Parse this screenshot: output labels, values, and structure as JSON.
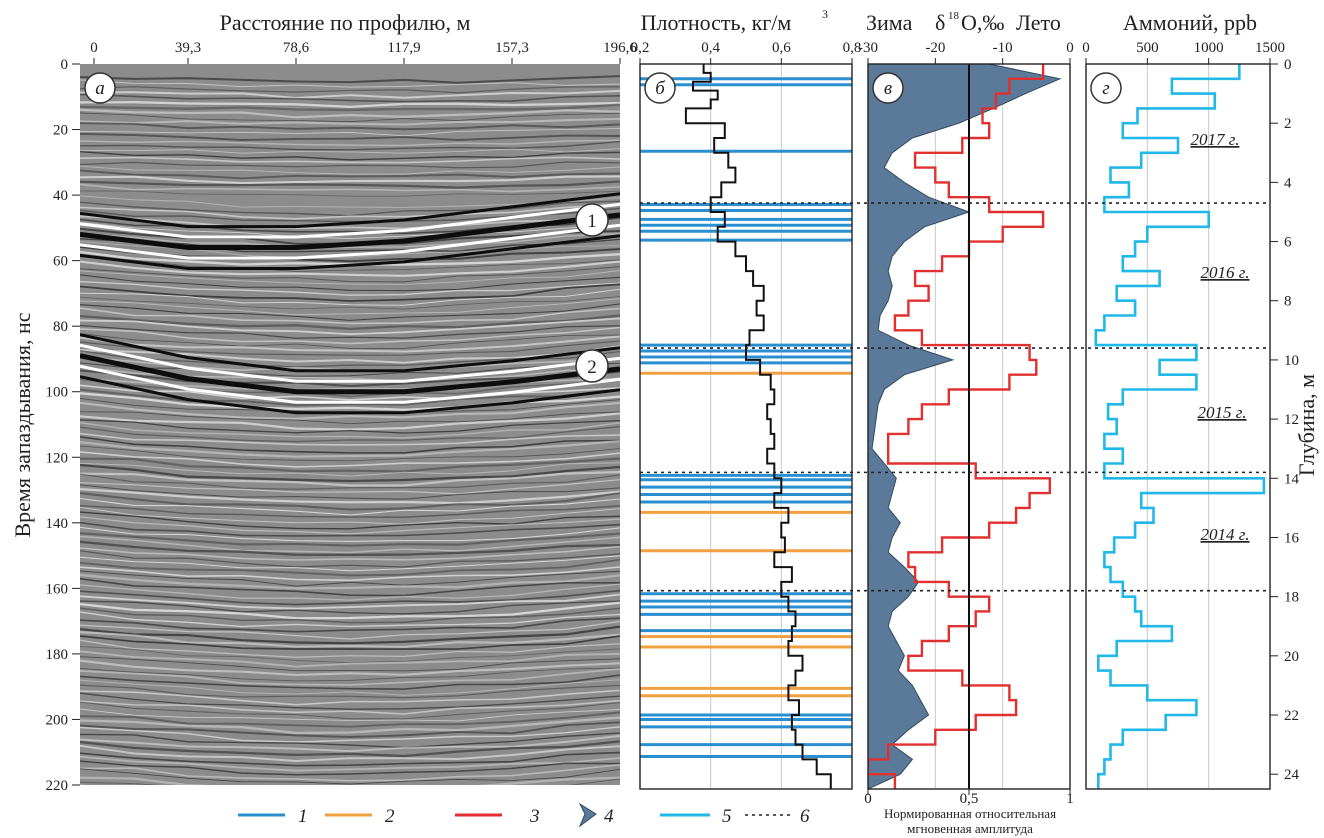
{
  "radargram": {
    "title": "Расстояние по профилю, м",
    "x_ticks": [
      "0",
      "39,3",
      "78,6",
      "117,9",
      "157,3",
      "196,6"
    ],
    "y_label": "Время запаздывания, нс",
    "y_ticks": [
      "0",
      "20",
      "40",
      "60",
      "80",
      "100",
      "120",
      "140",
      "160",
      "180",
      "200",
      "220"
    ],
    "panel_letter": "а",
    "horizon_labels": [
      "1",
      "2"
    ]
  },
  "density": {
    "title": "Плотность, кг/м",
    "title_sup": "3",
    "x_ticks": [
      "0,2",
      "0,4",
      "0,6",
      "0,8"
    ],
    "panel_letter": "б"
  },
  "isotope": {
    "title_left": "Зима",
    "title_mid": "δ",
    "title_sup": "18",
    "title_tail": "О,‰",
    "title_right": "Лето",
    "x_ticks": [
      "-30",
      "-20",
      "-10",
      "0"
    ],
    "bottom_ticks": [
      "0",
      "0,5",
      "1"
    ],
    "bottom_label_1": "Нормированная относительная",
    "bottom_label_2": "мгновенная амплитуда",
    "panel_letter": "в"
  },
  "ammonium": {
    "title": "Аммоний, ppb",
    "x_ticks": [
      "0",
      "500",
      "1000",
      "1500"
    ],
    "panel_letter": "г",
    "y_label": "Глубина, м",
    "y_ticks": [
      "0",
      "2",
      "4",
      "6",
      "8",
      "10",
      "12",
      "14",
      "16",
      "18",
      "20",
      "22",
      "24"
    ],
    "years": [
      "2017 г.",
      "2016 г.",
      "2015 г.",
      "2014 г."
    ]
  },
  "legend": {
    "items": [
      {
        "label": "1",
        "color": "#2a8fd0",
        "style": "line"
      },
      {
        "label": "2",
        "color": "#f0a040",
        "style": "line"
      },
      {
        "label": "3",
        "color": "#e03030",
        "style": "line"
      },
      {
        "label": "4",
        "color": "#5b7a99",
        "style": "shape"
      },
      {
        "label": "5",
        "color": "#20b8e8",
        "style": "line"
      },
      {
        "label": "6",
        "color": "#222222",
        "style": "dotted"
      }
    ]
  },
  "colors": {
    "blue_horizon": "#2a8fd0",
    "orange_horizon": "#f0a040",
    "isotope": "#e03030",
    "amplitude_fill": "#5b7a99",
    "ammonium": "#20b8e8"
  },
  "chart_data": [
    {
      "type": "heatmap",
      "title": "Расстояние по профилю, м",
      "xlabel": "Расстояние по профилю, м",
      "ylabel": "Время запаздывания, нс",
      "xlim": [
        0,
        196.6
      ],
      "ylim": [
        220,
        0
      ],
      "horizons": [
        {
          "name": "1",
          "time_ns": [
            52,
            56,
            56,
            54,
            50,
            46
          ]
        },
        {
          "name": "2",
          "time_ns": [
            89,
            96,
            100,
            100,
            97,
            93
          ]
        }
      ]
    },
    {
      "type": "line",
      "title": "Плотность, кг/м3",
      "xlabel": "Плотность, кг/м3",
      "xlim": [
        0.2,
        0.8
      ],
      "ylim_depth_m": [
        24.5,
        0
      ],
      "depth_m": [
        0,
        0.3,
        0.6,
        0.9,
        1.2,
        1.5,
        2.0,
        2.5,
        3.0,
        3.5,
        4.0,
        4.5,
        5.0,
        5.5,
        6.0,
        6.5,
        7.0,
        7.5,
        8.0,
        8.5,
        9.0,
        9.5,
        10.0,
        10.5,
        11.0,
        11.5,
        12.0,
        12.5,
        13.0,
        13.5,
        14.0,
        14.5,
        15.0,
        15.5,
        16.0,
        16.5,
        17.0,
        17.5,
        18.0,
        18.5,
        19.0,
        19.5,
        20.0,
        20.5,
        21.0,
        21.5,
        22.0,
        22.5,
        23.0,
        23.5,
        24.0
      ],
      "values": [
        0.38,
        0.4,
        0.35,
        0.42,
        0.4,
        0.33,
        0.44,
        0.41,
        0.45,
        0.47,
        0.43,
        0.4,
        0.44,
        0.42,
        0.47,
        0.5,
        0.52,
        0.55,
        0.53,
        0.55,
        0.51,
        0.5,
        0.54,
        0.57,
        0.58,
        0.56,
        0.57,
        0.58,
        0.56,
        0.58,
        0.6,
        0.58,
        0.62,
        0.6,
        0.61,
        0.58,
        0.63,
        0.6,
        0.62,
        0.64,
        0.63,
        0.62,
        0.66,
        0.64,
        0.62,
        0.65,
        0.63,
        0.64,
        0.66,
        0.7,
        0.74
      ],
      "horizons_blue_depth_m": [
        0.5,
        0.7,
        2.95,
        4.75,
        4.95,
        5.25,
        5.45,
        5.65,
        5.95,
        9.5,
        9.7,
        9.9,
        10.1,
        13.9,
        14.05,
        14.3,
        14.55,
        14.8,
        17.9,
        18.15,
        18.35,
        18.6,
        19.15,
        22.0,
        22.15,
        22.4,
        23.0,
        23.4
      ],
      "horizons_orange_depth_m": [
        10.45,
        15.15,
        16.45,
        19.35,
        19.7,
        21.1,
        21.35
      ]
    },
    {
      "type": "line",
      "title": "δ18О,‰",
      "xlabel": "δ18О,‰",
      "xlim": [
        -30,
        0
      ],
      "ylim_depth_m": [
        24.5,
        0
      ],
      "depth_m": [
        0,
        0.5,
        1.0,
        1.5,
        2.0,
        2.5,
        3.0,
        3.5,
        4.0,
        4.5,
        5.0,
        5.5,
        6.0,
        6.5,
        7.0,
        7.5,
        8.0,
        8.5,
        9.0,
        9.5,
        10.0,
        10.5,
        11.0,
        11.5,
        12.0,
        12.5,
        13.0,
        13.5,
        14.0,
        14.5,
        15.0,
        15.5,
        16.0,
        16.5,
        17.0,
        17.5,
        18.0,
        18.5,
        19.0,
        19.5,
        20.0,
        20.5,
        21.0,
        21.5,
        22.0,
        22.5,
        23.0,
        23.5,
        24.0
      ],
      "values": [
        -4,
        -9,
        -11,
        -13,
        -12,
        -16,
        -23,
        -20,
        -18,
        -12,
        -4,
        -10,
        -15,
        -19,
        -23,
        -21,
        -24,
        -26,
        -22,
        -6,
        -5,
        -9,
        -18,
        -22,
        -24,
        -27,
        -27,
        -14,
        -3,
        -6,
        -8,
        -12,
        -19,
        -24,
        -23,
        -18,
        -12,
        -14,
        -18,
        -22,
        -24,
        -16,
        -9,
        -8,
        -14,
        -20,
        -27,
        -30,
        -26
      ],
      "amplitude_depth_m": [
        0,
        0.5,
        1.0,
        1.5,
        2.0,
        2.5,
        3.0,
        3.5,
        4.0,
        4.5,
        5.0,
        5.5,
        6.0,
        6.5,
        7.0,
        7.5,
        8.0,
        8.5,
        9.0,
        9.5,
        10.0,
        10.5,
        11.0,
        11.5,
        12.0,
        12.5,
        13.0,
        13.5,
        14.0,
        14.5,
        15.0,
        15.5,
        16.0,
        16.5,
        17.0,
        17.5,
        18.0,
        18.5,
        19.0,
        19.5,
        20.0,
        20.5,
        21.0,
        21.5,
        22.0,
        22.5,
        23.0,
        23.5,
        24.0
      ],
      "amplitude": [
        0.6,
        0.95,
        0.78,
        0.62,
        0.45,
        0.22,
        0.12,
        0.08,
        0.18,
        0.3,
        0.5,
        0.28,
        0.18,
        0.12,
        0.1,
        0.12,
        0.1,
        0.06,
        0.05,
        0.2,
        0.42,
        0.18,
        0.08,
        0.05,
        0.04,
        0.03,
        0.02,
        0.08,
        0.14,
        0.12,
        0.1,
        0.16,
        0.12,
        0.1,
        0.18,
        0.25,
        0.2,
        0.12,
        0.1,
        0.14,
        0.18,
        0.15,
        0.22,
        0.26,
        0.3,
        0.2,
        0.12,
        0.22,
        0.16
      ],
      "bottom_xlabel": "Нормированная относительная мгновенная амплитуда",
      "bottom_xlim": [
        0,
        1
      ]
    },
    {
      "type": "line",
      "title": "Аммоний, ppb",
      "xlabel": "Аммоний, ppb",
      "ylabel": "Глубина, м",
      "xlim": [
        0,
        1500
      ],
      "ylim": [
        24.5,
        0
      ],
      "depth_m": [
        0,
        0.5,
        1.0,
        1.5,
        2.0,
        2.5,
        3.0,
        3.5,
        4.0,
        4.5,
        5.0,
        5.5,
        6.0,
        6.5,
        7.0,
        7.5,
        8.0,
        8.5,
        9.0,
        9.5,
        10.0,
        10.5,
        11.0,
        11.5,
        12.0,
        12.5,
        13.0,
        13.5,
        14.0,
        14.5,
        15.0,
        15.5,
        16.0,
        16.5,
        17.0,
        17.5,
        18.0,
        18.5,
        19.0,
        19.5,
        20.0,
        20.5,
        21.0,
        21.5,
        22.0,
        22.5,
        23.0,
        23.5,
        24.0
      ],
      "values": [
        1250,
        700,
        1050,
        420,
        300,
        750,
        450,
        200,
        350,
        150,
        1000,
        500,
        400,
        300,
        600,
        250,
        400,
        150,
        80,
        900,
        600,
        900,
        300,
        180,
        250,
        150,
        300,
        150,
        1450,
        450,
        550,
        400,
        230,
        150,
        200,
        300,
        400,
        450,
        700,
        250,
        100,
        200,
        500,
        900,
        650,
        300,
        200,
        150,
        100
      ]
    }
  ]
}
